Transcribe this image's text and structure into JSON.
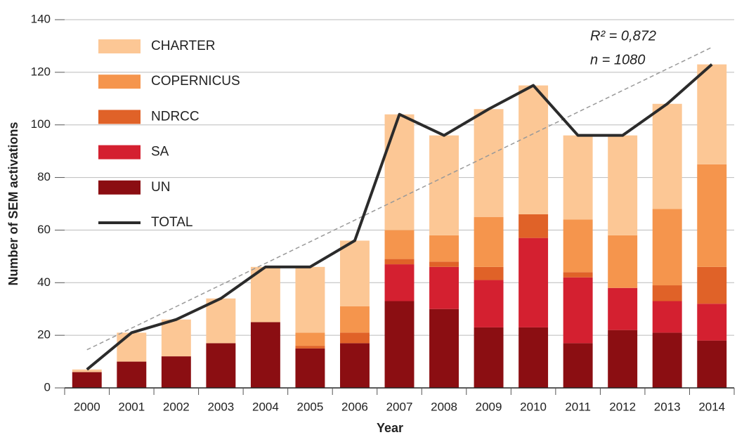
{
  "chart_data": {
    "type": "bar",
    "stacked": true,
    "x_label": "Year",
    "y_label": "Number of SEM activations",
    "categories": [
      "2000",
      "2001",
      "2002",
      "2003",
      "2004",
      "2005",
      "2006",
      "2007",
      "2008",
      "2009",
      "2010",
      "2011",
      "2012",
      "2013",
      "2014"
    ],
    "series": [
      {
        "name": "UN",
        "color": "#8b0e12",
        "values": [
          6,
          10,
          12,
          17,
          25,
          15,
          17,
          33,
          30,
          23,
          23,
          17,
          22,
          21,
          18
        ]
      },
      {
        "name": "SA",
        "color": "#d42030",
        "values": [
          0,
          0,
          0,
          0,
          0,
          0,
          0,
          14,
          16,
          18,
          34,
          25,
          16,
          12,
          14
        ]
      },
      {
        "name": "NDRCC",
        "color": "#e06228",
        "values": [
          0,
          0,
          0,
          0,
          0,
          1,
          4,
          2,
          2,
          5,
          9,
          2,
          0,
          6,
          14
        ]
      },
      {
        "name": "COPERNICUS",
        "color": "#f5954d",
        "values": [
          0,
          0,
          0,
          0,
          0,
          5,
          10,
          11,
          10,
          19,
          0,
          20,
          20,
          29,
          39
        ]
      },
      {
        "name": "CHARTER",
        "color": "#fcc795",
        "values": [
          1,
          11,
          14,
          17,
          21,
          25,
          25,
          44,
          38,
          41,
          49,
          32,
          38,
          40,
          38
        ]
      },
      {
        "name": "TOTAL",
        "type": "line",
        "color": "#2b2b2b",
        "values": [
          7,
          21,
          26,
          34,
          46,
          46,
          56,
          104,
          96,
          106,
          115,
          96,
          96,
          108,
          123
        ]
      }
    ],
    "trendline": {
      "color": "#999999",
      "values": [
        14.5,
        129.5
      ]
    },
    "annotations": [
      "R² = 0,872",
      "n = 1080"
    ],
    "ylim": [
      0,
      140
    ],
    "yticks": [
      0,
      20,
      40,
      60,
      80,
      100,
      120,
      140
    ],
    "grid": true
  }
}
